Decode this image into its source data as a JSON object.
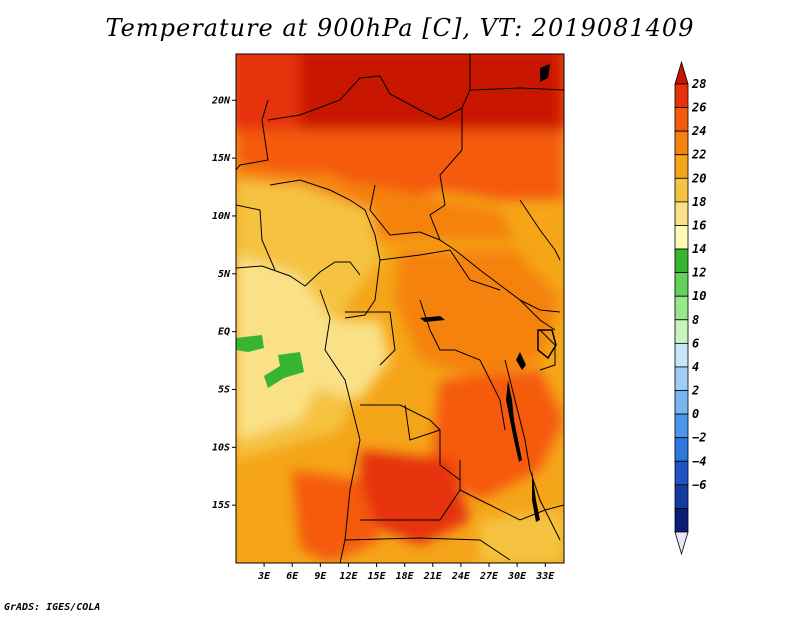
{
  "title": "Temperature at 900hPa [C], VT: 2019081409",
  "credit": "GrADS: IGES/COLA",
  "map": {
    "lon_range": [
      0,
      35
    ],
    "lat_range": [
      -20,
      24
    ],
    "x_ticks": [
      {
        "lon": 3,
        "label": "3E"
      },
      {
        "lon": 6,
        "label": "6E"
      },
      {
        "lon": 9,
        "label": "9E"
      },
      {
        "lon": 12,
        "label": "12E"
      },
      {
        "lon": 15,
        "label": "15E"
      },
      {
        "lon": 18,
        "label": "18E"
      },
      {
        "lon": 21,
        "label": "21E"
      },
      {
        "lon": 24,
        "label": "24E"
      },
      {
        "lon": 27,
        "label": "27E"
      },
      {
        "lon": 30,
        "label": "30E"
      },
      {
        "lon": 33,
        "label": "33E"
      }
    ],
    "y_ticks": [
      {
        "lat": 20,
        "label": "20N"
      },
      {
        "lat": 15,
        "label": "15N"
      },
      {
        "lat": 10,
        "label": "10N"
      },
      {
        "lat": 5,
        "label": "5N"
      },
      {
        "lat": 0,
        "label": "EQ"
      },
      {
        "lat": -5,
        "label": "5S"
      },
      {
        "lat": -10,
        "label": "10S"
      },
      {
        "lat": -15,
        "label": "15S"
      }
    ]
  },
  "colorbar": {
    "labels": [
      "28",
      "26",
      "24",
      "22",
      "20",
      "18",
      "16",
      "14",
      "12",
      "10",
      "8",
      "6",
      "4",
      "2",
      "0",
      "−2",
      "−4",
      "−6"
    ],
    "colors": [
      "#c81400",
      "#e6320a",
      "#f55a0f",
      "#f5820f",
      "#f5a519",
      "#f5c341",
      "#fae187",
      "#fffab4",
      "#37b432",
      "#64d25a",
      "#96e68c",
      "#c8f5be",
      "#c8e6fa",
      "#a0cdf5",
      "#78b4f0",
      "#4b96eb",
      "#2d78dc",
      "#1e55c3",
      "#143ca0",
      "#0a1e78",
      "#e6e6fa"
    ]
  }
}
